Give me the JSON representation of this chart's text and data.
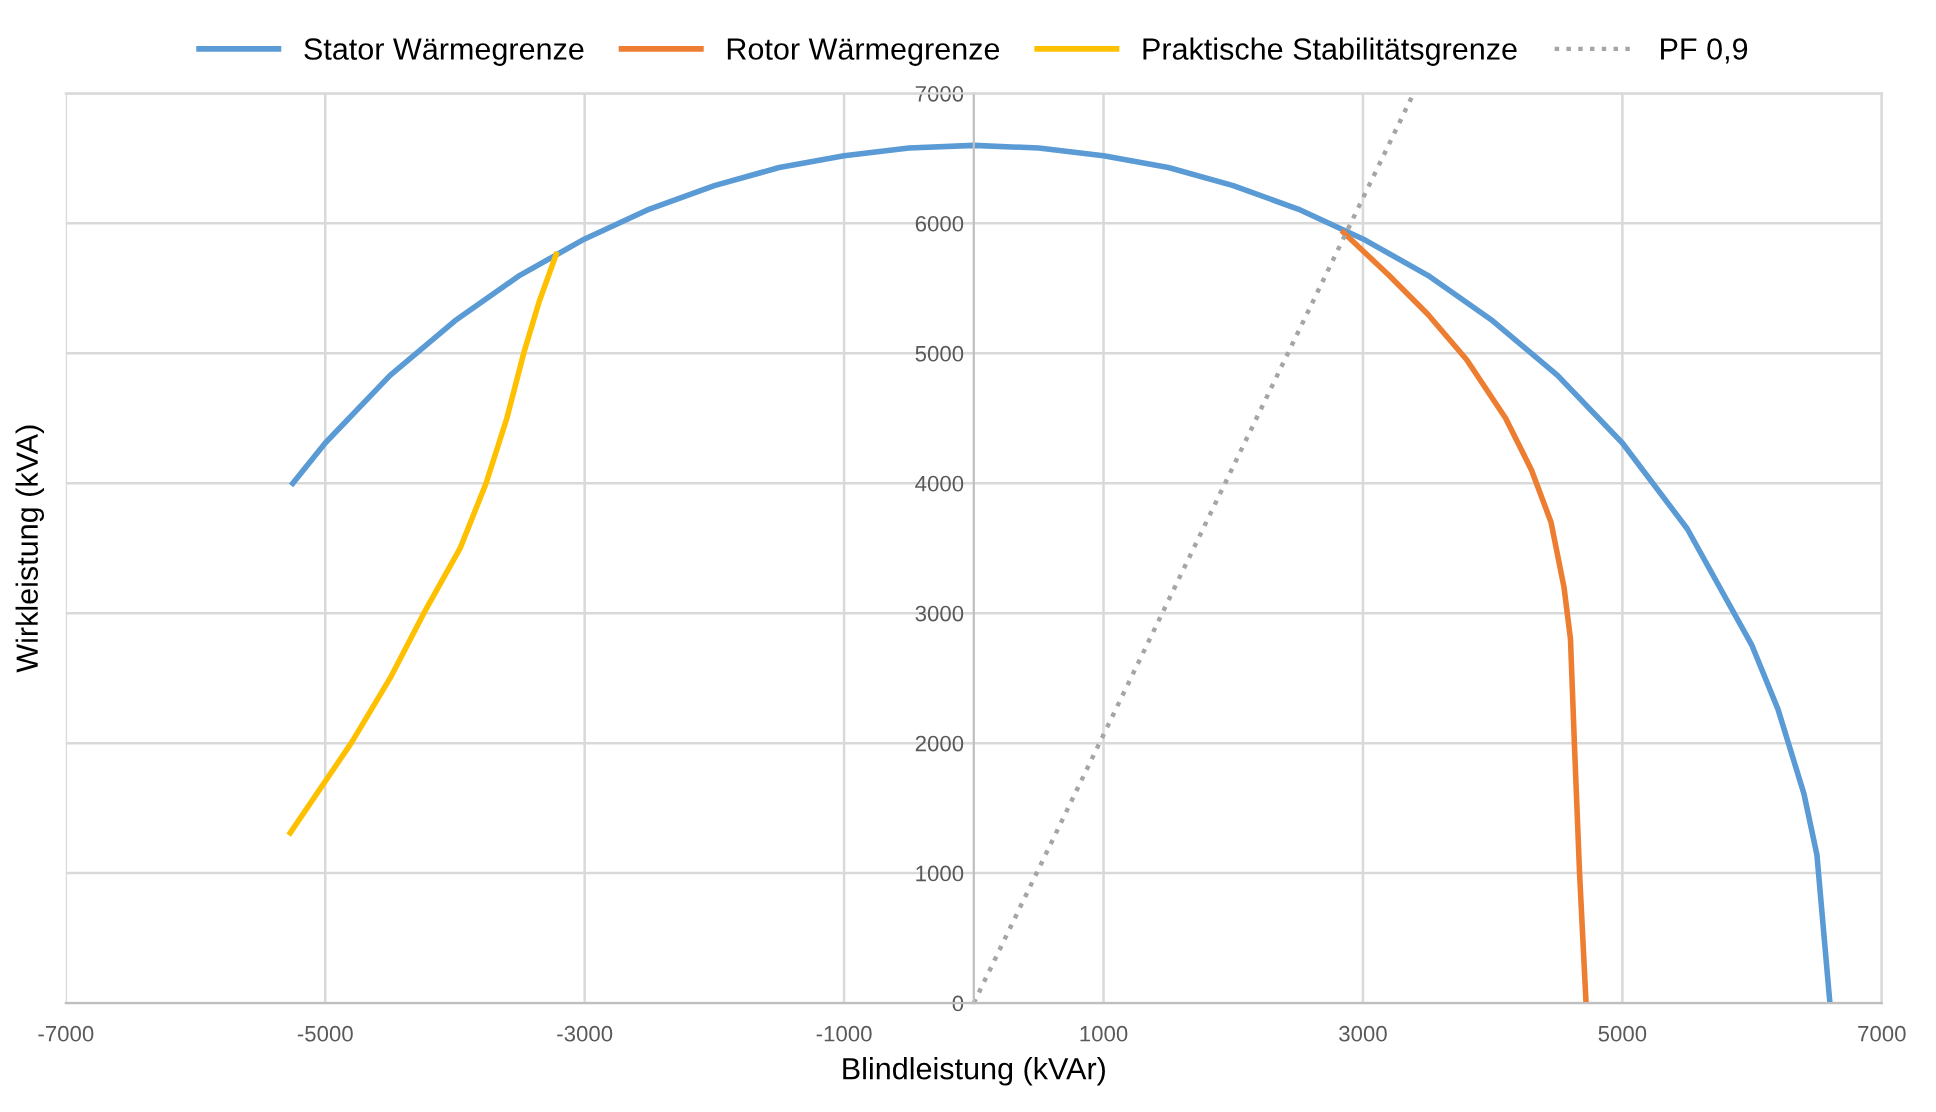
{
  "chart_data": {
    "type": "line",
    "xlabel": "Blindleistung (kVAr)",
    "ylabel": "Wirkleistung (kVA)",
    "xlim": [
      -7000,
      7000
    ],
    "ylim": [
      0,
      7000
    ],
    "xticks": [
      -7000,
      -5000,
      -3000,
      -1000,
      1000,
      3000,
      5000,
      7000
    ],
    "yticks": [
      0,
      1000,
      2000,
      3000,
      4000,
      5000,
      6000,
      7000
    ],
    "grid": true,
    "legend": "top",
    "marker": "none",
    "series": [
      {
        "name": "Stator Wärmegrenze",
        "color": "#5b9bd5",
        "line_style": "solid",
        "x": [
          -5250,
          -5000,
          -4500,
          -4000,
          -3500,
          -3000,
          -2500,
          -2000,
          -1500,
          -1000,
          -500,
          0,
          500,
          1000,
          1500,
          2000,
          2500,
          3000,
          3500,
          4000,
          4500,
          5000,
          5500,
          6000,
          6200,
          6400,
          6500,
          6600
        ],
        "values": [
          4000,
          4310,
          4830,
          5250,
          5600,
          5880,
          6110,
          6290,
          6430,
          6520,
          6580,
          6600,
          6580,
          6520,
          6430,
          6290,
          6110,
          5880,
          5600,
          5250,
          4830,
          4310,
          3650,
          2750,
          2260,
          1610,
          1140,
          0
        ]
      },
      {
        "name": "Rotor Wärmegrenze",
        "color": "#ed7d31",
        "line_style": "solid",
        "x": [
          2850,
          3200,
          3500,
          3800,
          4100,
          4300,
          4450,
          4550,
          4600,
          4630,
          4670,
          4720
        ],
        "values": [
          5930,
          5600,
          5300,
          4950,
          4500,
          4100,
          3700,
          3200,
          2800,
          2000,
          1000,
          0
        ]
      },
      {
        "name": "Praktische Stabilitätsgrenze",
        "color": "#ffc000",
        "line_style": "solid",
        "x": [
          -5270,
          -4800,
          -4500,
          -4240,
          -3960,
          -3760,
          -3600,
          -3470,
          -3350,
          -3220
        ],
        "values": [
          1310,
          2000,
          2500,
          3000,
          3500,
          4000,
          4500,
          5000,
          5400,
          5760
        ]
      },
      {
        "name": "PF 0,9",
        "color": "#a5a5a5",
        "line_style": "dotted",
        "x": [
          0,
          3390
        ],
        "values": [
          0,
          7000
        ]
      }
    ]
  }
}
